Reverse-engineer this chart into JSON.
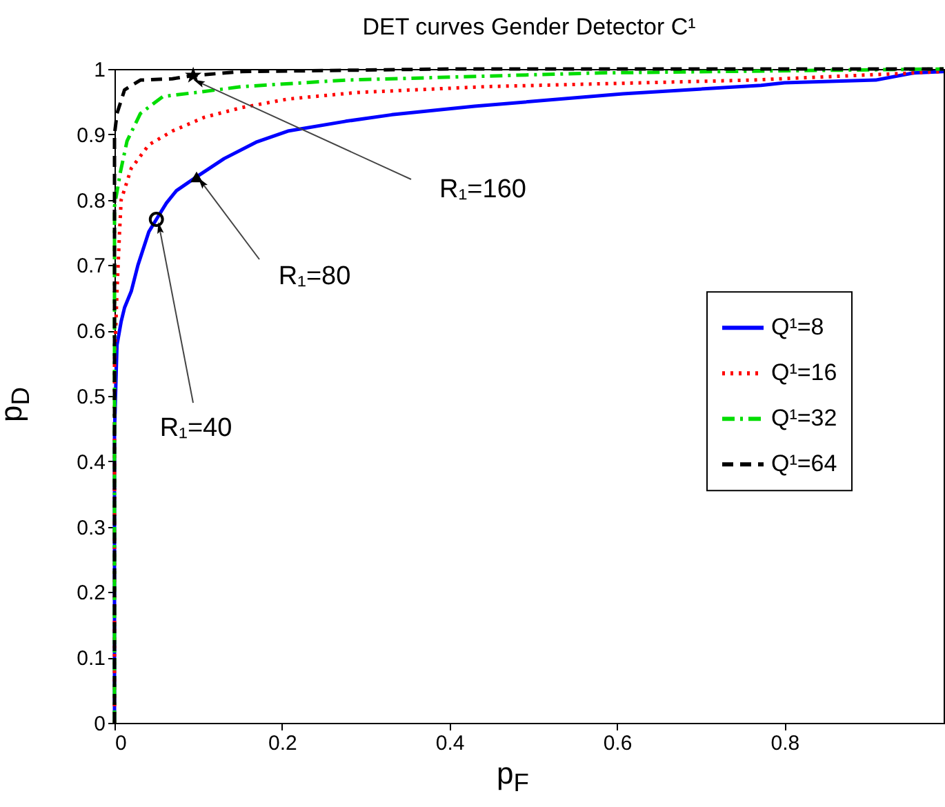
{
  "chart_data": {
    "type": "line",
    "title": "DET curves Gender Detector C¹",
    "xlabel": "p$_{F}$",
    "ylabel": "p$_{D}$",
    "xlim": [
      0,
      0.99
    ],
    "ylim": [
      0,
      1
    ],
    "xticks": [
      0,
      0.2,
      0.4,
      0.6,
      0.8
    ],
    "yticks": [
      0,
      0.1,
      0.2,
      0.3,
      0.4,
      0.5,
      0.6,
      0.7,
      0.8,
      0.9,
      1
    ],
    "grid": false,
    "legend": "right",
    "marker": "none",
    "series": [
      {
        "name": "Q¹=8",
        "color": "#0000ff",
        "line_style": "solid",
        "x": [
          0,
          0,
          0.002,
          0.003,
          0.008,
          0.012,
          0.02,
          0.028,
          0.041,
          0.05,
          0.062,
          0.074,
          0.098,
          0.131,
          0.169,
          0.207,
          0.276,
          0.331,
          0.43,
          0.607,
          0.772,
          0.8,
          0.909,
          0.954,
          0.99
        ],
        "values": [
          0,
          0.445,
          0.536,
          0.578,
          0.614,
          0.635,
          0.66,
          0.7,
          0.751,
          0.77,
          0.795,
          0.814,
          0.835,
          0.863,
          0.888,
          0.905,
          0.92,
          0.93,
          0.943,
          0.962,
          0.975,
          0.979,
          0.983,
          0.994,
          0.996
        ]
      },
      {
        "name": "Q¹=16",
        "color": "#ff0000",
        "line_style": "dotted",
        "x": [
          0,
          0,
          0.003,
          0.006,
          0.008,
          0.02,
          0.041,
          0.069,
          0.107,
          0.152,
          0.207,
          0.289,
          0.443,
          0.76,
          0.99
        ],
        "values": [
          0,
          0.55,
          0.66,
          0.75,
          0.8,
          0.848,
          0.884,
          0.905,
          0.926,
          0.941,
          0.954,
          0.964,
          0.973,
          0.983,
          0.996
        ]
      },
      {
        "name": "Q¹=32",
        "color": "#00dd00",
        "line_style": "dashdot",
        "x": [
          0,
          0,
          0.007,
          0.015,
          0.031,
          0.058,
          0.097,
          0.152,
          0.276,
          0.579,
          0.99
        ],
        "values": [
          0,
          0.79,
          0.842,
          0.89,
          0.932,
          0.958,
          0.964,
          0.973,
          0.983,
          0.994,
          1
        ]
      },
      {
        "name": "Q¹=64",
        "color": "#000000",
        "line_style": "dashed",
        "x": [
          0,
          0,
          0.003,
          0.012,
          0.031,
          0.069,
          0.094,
          0.152,
          0.4,
          0.99
        ],
        "values": [
          0,
          0.9,
          0.932,
          0.968,
          0.983,
          0.985,
          0.99,
          0.996,
          1,
          1
        ]
      },
      {
        "type": "scatter",
        "marker": "star",
        "color": "#000000",
        "x": [
          0.094
        ],
        "values": [
          0.99
        ]
      },
      {
        "type": "scatter",
        "marker": "triangle",
        "color": "#000000",
        "x": [
          0.098
        ],
        "values": [
          0.835
        ]
      },
      {
        "type": "scatter",
        "marker": "circle",
        "color": "#000000",
        "x": [
          0.05
        ],
        "values": [
          0.77
        ]
      }
    ],
    "annotations": [
      {
        "text": "R₁=160",
        "x": 0.102,
        "y": 0.979
      },
      {
        "text": "R₁=80",
        "x": 0.105,
        "y": 0.825
      },
      {
        "text": "R₁=40",
        "x": 0.054,
        "y": 0.755
      }
    ]
  }
}
